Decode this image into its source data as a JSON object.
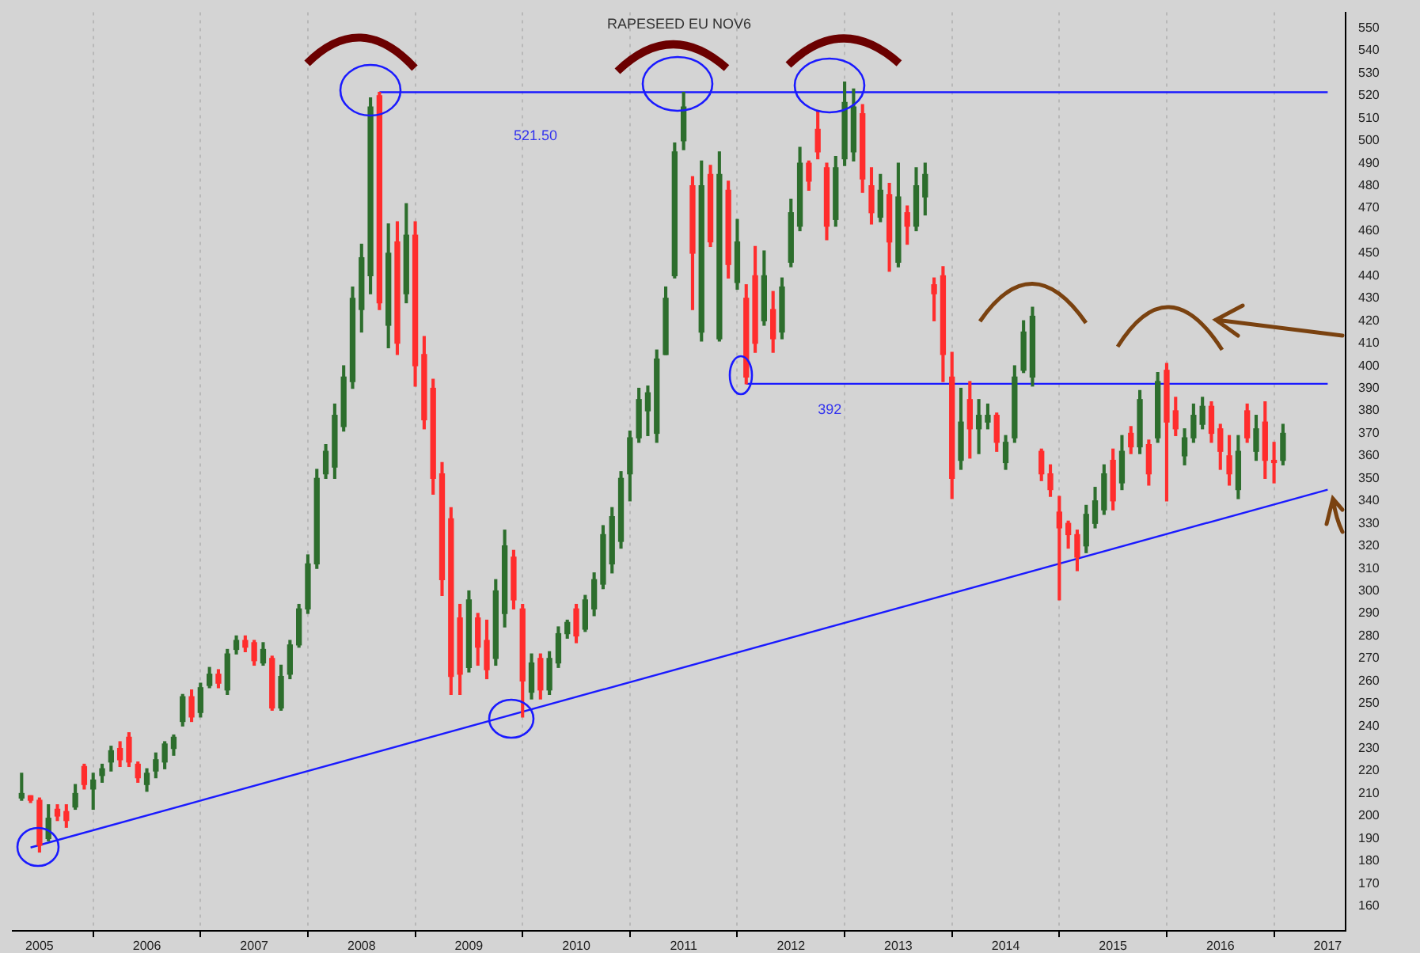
{
  "chart_data": {
    "type": "candlestick",
    "title": "RAPESEED EU NOV6",
    "x": [
      "2004-11",
      "2004-12",
      "2005-01",
      "2005-02",
      "2005-03",
      "2005-04",
      "2005-05",
      "2005-06",
      "2005-07",
      "2005-08",
      "2005-09",
      "2005-10",
      "2005-11",
      "2005-12",
      "2006-01",
      "2006-02",
      "2006-03",
      "2006-04",
      "2006-05",
      "2006-06",
      "2006-07",
      "2006-08",
      "2006-09",
      "2006-10",
      "2006-11",
      "2006-12",
      "2007-01",
      "2007-02",
      "2007-03",
      "2007-04",
      "2007-05",
      "2007-06",
      "2007-07",
      "2007-08",
      "2007-09",
      "2007-10",
      "2007-11",
      "2007-12",
      "2008-01",
      "2008-02",
      "2008-03",
      "2008-04",
      "2008-05",
      "2008-06",
      "2008-07",
      "2008-08",
      "2008-09",
      "2008-10",
      "2008-11",
      "2008-12",
      "2009-01",
      "2009-02",
      "2009-03",
      "2009-04",
      "2009-05",
      "2009-06",
      "2009-07",
      "2009-08",
      "2009-09",
      "2009-10",
      "2009-11",
      "2009-12",
      "2010-01",
      "2010-02",
      "2010-03",
      "2010-04",
      "2010-05",
      "2010-06",
      "2010-07",
      "2010-08",
      "2010-09",
      "2010-10",
      "2010-11",
      "2010-12",
      "2011-01",
      "2011-02",
      "2011-03",
      "2011-04",
      "2011-05",
      "2011-06",
      "2011-07",
      "2011-08",
      "2011-09",
      "2011-10",
      "2011-11",
      "2011-12",
      "2012-01",
      "2012-02",
      "2012-03",
      "2012-04",
      "2012-05",
      "2012-06",
      "2012-07",
      "2012-08",
      "2012-09",
      "2012-10",
      "2012-11",
      "2012-12",
      "2013-01",
      "2013-02",
      "2013-03",
      "2013-04",
      "2013-05",
      "2013-06",
      "2013-07",
      "2013-08",
      "2013-09",
      "2013-10",
      "2013-11",
      "2013-12",
      "2014-01",
      "2014-02",
      "2014-03",
      "2014-04",
      "2014-05",
      "2014-06",
      "2014-07",
      "2014-08",
      "2014-09",
      "2014-10",
      "2014-11",
      "2014-12",
      "2015-01",
      "2015-02",
      "2015-03",
      "2015-04",
      "2015-05",
      "2015-06",
      "2015-07",
      "2015-08",
      "2015-09",
      "2015-10",
      "2015-11",
      "2015-12",
      "2016-01",
      "2016-02",
      "2016-03",
      "2016-04",
      "2016-05",
      "2016-06",
      "2016-07",
      "2016-08"
    ],
    "ohlc": [
      [
        208,
        219,
        207,
        210
      ],
      [
        209,
        209,
        206,
        207
      ],
      [
        207,
        208,
        184,
        187
      ],
      [
        190,
        205,
        189,
        199
      ],
      [
        203,
        205,
        198,
        200
      ],
      [
        202,
        205,
        195,
        198
      ],
      [
        204,
        214,
        203,
        210
      ],
      [
        222,
        223,
        212,
        214
      ],
      [
        212,
        219,
        203,
        216
      ],
      [
        218,
        223,
        215,
        221
      ],
      [
        224,
        231,
        220,
        229
      ],
      [
        230,
        233,
        222,
        225
      ],
      [
        235,
        237,
        222,
        224
      ],
      [
        223,
        224,
        215,
        217
      ],
      [
        214,
        221,
        211,
        219
      ],
      [
        220,
        228,
        217,
        225
      ],
      [
        224,
        233,
        221,
        232
      ],
      [
        230,
        236,
        227,
        235
      ],
      [
        242,
        254,
        240,
        253
      ],
      [
        253,
        256,
        242,
        244
      ],
      [
        246,
        259,
        244,
        257
      ],
      [
        258,
        266,
        257,
        263
      ],
      [
        263,
        265,
        257,
        259
      ],
      [
        256,
        274,
        254,
        272
      ],
      [
        274,
        280,
        272,
        278
      ],
      [
        278,
        280,
        273,
        275
      ],
      [
        277,
        278,
        267,
        269
      ],
      [
        268,
        277,
        267,
        274
      ],
      [
        270,
        271,
        247,
        248
      ],
      [
        248,
        267,
        247,
        262
      ],
      [
        263,
        278,
        261,
        276
      ],
      [
        276,
        294,
        275,
        292
      ],
      [
        292,
        316,
        290,
        312
      ],
      [
        312,
        354,
        310,
        350
      ],
      [
        352,
        365,
        350,
        362
      ],
      [
        355,
        383,
        350,
        378
      ],
      [
        373,
        400,
        371,
        395
      ],
      [
        393,
        435,
        390,
        430
      ],
      [
        425,
        454,
        415,
        448
      ],
      [
        440,
        519,
        432,
        515
      ],
      [
        520,
        521.5,
        425,
        428
      ],
      [
        418,
        463,
        408,
        450
      ],
      [
        455,
        464,
        405,
        410
      ],
      [
        432,
        472,
        428,
        458
      ],
      [
        458,
        464,
        391,
        400
      ],
      [
        405,
        413,
        372,
        376
      ],
      [
        390,
        394,
        343,
        350
      ],
      [
        352,
        357,
        298,
        305
      ],
      [
        332,
        337,
        254,
        262
      ],
      [
        288,
        294,
        254,
        263
      ],
      [
        266,
        300,
        264,
        296
      ],
      [
        288,
        290,
        267,
        275
      ],
      [
        278,
        287,
        261,
        265
      ],
      [
        270,
        305,
        267,
        300
      ],
      [
        290,
        327,
        284,
        320
      ],
      [
        315,
        318,
        292,
        296
      ],
      [
        292,
        294,
        244,
        260
      ],
      [
        255,
        272,
        252,
        268
      ],
      [
        270,
        272,
        252,
        256
      ],
      [
        256,
        273,
        254,
        270
      ],
      [
        268,
        284,
        266,
        281
      ],
      [
        281,
        287,
        279,
        286
      ],
      [
        292,
        294,
        277,
        280
      ],
      [
        283,
        298,
        282,
        296
      ],
      [
        292,
        308,
        289,
        305
      ],
      [
        303,
        329,
        301,
        325
      ],
      [
        312,
        337,
        308,
        333
      ],
      [
        322,
        353,
        319,
        350
      ],
      [
        352,
        371,
        340,
        368
      ],
      [
        368,
        390,
        366,
        385
      ],
      [
        380,
        391,
        369,
        388
      ],
      [
        370,
        407,
        366,
        403
      ],
      [
        405,
        435,
        405,
        430
      ],
      [
        440,
        499,
        439,
        495
      ],
      [
        500,
        521.5,
        496,
        515
      ],
      [
        480,
        484,
        425,
        450
      ],
      [
        415,
        491,
        411,
        480
      ],
      [
        485,
        489,
        453,
        455
      ],
      [
        412,
        495,
        411,
        485
      ],
      [
        478,
        482,
        439,
        445
      ],
      [
        437,
        465,
        434,
        455
      ],
      [
        430,
        436,
        392,
        395
      ],
      [
        440,
        453,
        406,
        410
      ],
      [
        420,
        451,
        418,
        440
      ],
      [
        425,
        433,
        406,
        412
      ],
      [
        415,
        439,
        412,
        435
      ],
      [
        446,
        474,
        444,
        468
      ],
      [
        462,
        497,
        460,
        490
      ],
      [
        490,
        491,
        478,
        482
      ],
      [
        505,
        513,
        492,
        495
      ],
      [
        488,
        490,
        456,
        462
      ],
      [
        465,
        493,
        462,
        488
      ],
      [
        492,
        526,
        489,
        517
      ],
      [
        495,
        523,
        491,
        515
      ],
      [
        512,
        516,
        477,
        483
      ],
      [
        480,
        488,
        463,
        468
      ],
      [
        466,
        485,
        464,
        478
      ],
      [
        476,
        481,
        442,
        455
      ],
      [
        446,
        490,
        444,
        475
      ],
      [
        468,
        471,
        454,
        462
      ],
      [
        462,
        488,
        460,
        480
      ],
      [
        475,
        490,
        467,
        485
      ],
      [
        436,
        439,
        420,
        432
      ],
      [
        440,
        444,
        393,
        405
      ],
      [
        395,
        406,
        341,
        350
      ],
      [
        358,
        390,
        354,
        375
      ],
      [
        385,
        393,
        359,
        372
      ],
      [
        372,
        385,
        361,
        378
      ],
      [
        375,
        383,
        372,
        378
      ],
      [
        378,
        379,
        362,
        366
      ],
      [
        357,
        369,
        354,
        366
      ],
      [
        368,
        400,
        366,
        395
      ],
      [
        398,
        420,
        397,
        415
      ],
      [
        395,
        426,
        391,
        422
      ],
      [
        362,
        363,
        349,
        352
      ],
      [
        352,
        356,
        342,
        345
      ],
      [
        335,
        342,
        296,
        328
      ],
      [
        330,
        331,
        319,
        325
      ],
      [
        325,
        327,
        309,
        315
      ],
      [
        320,
        338,
        317,
        334
      ],
      [
        330,
        346,
        328,
        340
      ],
      [
        336,
        356,
        334,
        352
      ],
      [
        358,
        363,
        336,
        340
      ],
      [
        348,
        369,
        345,
        362
      ],
      [
        370,
        373,
        361,
        364
      ],
      [
        364,
        389,
        361,
        385
      ],
      [
        365,
        367,
        347,
        352
      ],
      [
        368,
        397,
        366,
        393
      ],
      [
        398,
        401,
        340,
        375
      ],
      [
        380,
        386,
        369,
        372
      ],
      [
        360,
        372,
        356,
        368
      ],
      [
        368,
        383,
        366,
        378
      ],
      [
        374,
        386,
        372,
        382
      ],
      [
        382,
        384,
        366,
        370
      ],
      [
        372,
        374,
        354,
        362
      ],
      [
        360,
        369,
        347,
        352
      ],
      [
        345,
        369,
        341,
        362
      ],
      [
        380,
        383,
        366,
        368
      ],
      [
        362,
        378,
        358,
        372
      ],
      [
        375,
        384,
        350,
        358
      ],
      [
        358,
        366,
        348,
        357
      ],
      [
        358,
        374,
        356,
        370
      ]
    ],
    "colors": [
      "#2d6e2d",
      "#ff2d2d",
      "#ff2d2d",
      "#2d6e2d",
      "#ff2d2d",
      "#ff2d2d",
      "#2d6e2d",
      "#ff2d2d",
      "#2d6e2d",
      "#2d6e2d",
      "#2d6e2d",
      "#ff2d2d",
      "#ff2d2d",
      "#ff2d2d",
      "#2d6e2d",
      "#2d6e2d",
      "#2d6e2d",
      "#2d6e2d",
      "#2d6e2d",
      "#ff2d2d",
      "#2d6e2d",
      "#2d6e2d",
      "#ff2d2d",
      "#2d6e2d",
      "#2d6e2d",
      "#ff2d2d",
      "#ff2d2d",
      "#2d6e2d",
      "#ff2d2d",
      "#2d6e2d",
      "#2d6e2d",
      "#2d6e2d",
      "#2d6e2d",
      "#2d6e2d",
      "#2d6e2d",
      "#2d6e2d",
      "#2d6e2d",
      "#2d6e2d",
      "#2d6e2d",
      "#2d6e2d",
      "#ff2d2d",
      "#2d6e2d",
      "#ff2d2d",
      "#2d6e2d",
      "#ff2d2d",
      "#ff2d2d",
      "#ff2d2d",
      "#ff2d2d",
      "#ff2d2d",
      "#ff2d2d",
      "#2d6e2d",
      "#ff2d2d",
      "#ff2d2d",
      "#2d6e2d",
      "#2d6e2d",
      "#ff2d2d",
      "#ff2d2d",
      "#2d6e2d",
      "#ff2d2d",
      "#2d6e2d",
      "#2d6e2d",
      "#2d6e2d",
      "#ff2d2d",
      "#2d6e2d",
      "#2d6e2d",
      "#2d6e2d",
      "#2d6e2d",
      "#2d6e2d",
      "#2d6e2d",
      "#2d6e2d",
      "#2d6e2d",
      "#2d6e2d",
      "#2d6e2d",
      "#2d6e2d",
      "#2d6e2d",
      "#ff2d2d",
      "#2d6e2d",
      "#ff2d2d",
      "#2d6e2d",
      "#ff2d2d",
      "#2d6e2d",
      "#ff2d2d",
      "#ff2d2d",
      "#2d6e2d",
      "#ff2d2d",
      "#2d6e2d",
      "#2d6e2d",
      "#2d6e2d",
      "#ff2d2d",
      "#ff2d2d",
      "#ff2d2d",
      "#2d6e2d",
      "#2d6e2d",
      "#2d6e2d",
      "#ff2d2d",
      "#ff2d2d",
      "#2d6e2d",
      "#ff2d2d",
      "#2d6e2d",
      "#ff2d2d",
      "#2d6e2d",
      "#2d6e2d",
      "#ff2d2d",
      "#ff2d2d",
      "#ff2d2d",
      "#2d6e2d",
      "#ff2d2d",
      "#2d6e2d",
      "#2d6e2d",
      "#ff2d2d",
      "#2d6e2d",
      "#2d6e2d",
      "#2d6e2d",
      "#2d6e2d",
      "#ff2d2d",
      "#ff2d2d",
      "#ff2d2d",
      "#ff2d2d",
      "#ff2d2d",
      "#2d6e2d",
      "#2d6e2d",
      "#2d6e2d",
      "#ff2d2d",
      "#2d6e2d",
      "#ff2d2d",
      "#2d6e2d",
      "#ff2d2d",
      "#2d6e2d",
      "#ff2d2d",
      "#ff2d2d",
      "#2d6e2d",
      "#2d6e2d",
      "#2d6e2d",
      "#ff2d2d",
      "#ff2d2d",
      "#ff2d2d",
      "#2d6e2d",
      "#ff2d2d",
      "#2d6e2d",
      "#ff2d2d",
      "#ff2d2d",
      "#2d6e2d"
    ],
    "series": [
      {
        "type": "line",
        "color": "#1a1aff",
        "x": [
          "2004-12",
          "2017-01"
        ],
        "values": [
          186,
          345
        ]
      },
      {
        "type": "line",
        "color": "#1a1aff",
        "x": [
          "2008-03",
          "2017-01"
        ],
        "values": [
          521.5,
          521.5
        ]
      },
      {
        "type": "line",
        "color": "#1a1aff",
        "x": [
          "2011-08",
          "2017-01"
        ],
        "values": [
          392,
          392
        ]
      }
    ],
    "annotations": [
      {
        "text": "521.50",
        "x": "2009-06",
        "y": 521.5
      },
      {
        "text": "392",
        "x": "2012-04",
        "y": 392
      }
    ],
    "xlim": [
      "2004-10",
      "2017-03"
    ],
    "xticks": [
      "2005",
      "2006",
      "2007",
      "2008",
      "2009",
      "2010",
      "2011",
      "2012",
      "2013",
      "2014",
      "2015",
      "2016",
      "2017"
    ],
    "ylim": [
      149,
      557
    ],
    "yticks": [
      160,
      170,
      180,
      190,
      200,
      210,
      220,
      230,
      240,
      250,
      260,
      270,
      280,
      290,
      300,
      310,
      320,
      330,
      340,
      350,
      360,
      370,
      380,
      390,
      400,
      410,
      420,
      430,
      440,
      450,
      460,
      470,
      480,
      490,
      500,
      510,
      520,
      530,
      540,
      550
    ],
    "grid": "x",
    "legend": false,
    "marker": "none",
    "line_style": "solid"
  }
}
